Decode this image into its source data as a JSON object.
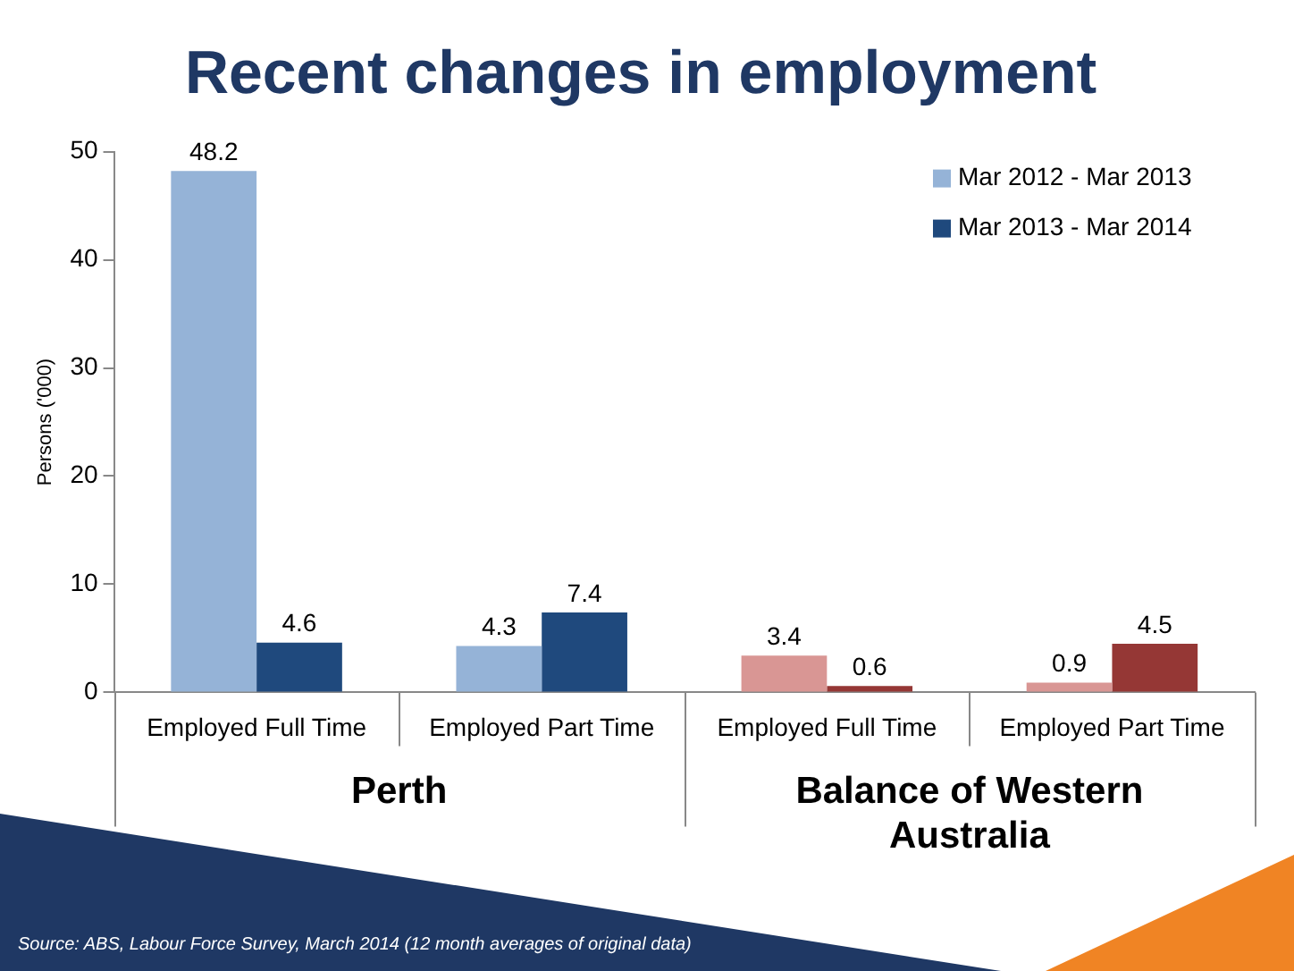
{
  "chart_data": {
    "type": "bar",
    "title": "Recent changes in employment",
    "ylabel": "Persons ('000)",
    "categories": [
      "Employed Full Time",
      "Employed Part Time",
      "Employed Full Time",
      "Employed Part Time"
    ],
    "series": [
      {
        "name": "Mar 2012 - Mar 2013",
        "color": "#95b3d7",
        "colors": [
          "#95b3d7",
          "#95b3d7",
          "#d99694",
          "#d99694"
        ],
        "values": [
          48.2,
          4.3,
          3.4,
          0.9
        ]
      },
      {
        "name": "Mar 2013 - Mar 2014",
        "color": "#1f497d",
        "colors": [
          "#1f497d",
          "#1f497d",
          "#953735",
          "#953735"
        ],
        "values": [
          4.6,
          7.4,
          0.6,
          4.5
        ]
      }
    ],
    "ylim": [
      0,
      50
    ],
    "yticks": [
      0,
      10,
      20,
      30,
      40,
      50
    ],
    "grid": false,
    "legend": "top right",
    "data_labels": true,
    "annotations": [
      "Perth",
      "Balance of Western Australia",
      "Source: ABS, Labour Force Survey, March 2014 (12 month averages of original data)"
    ]
  }
}
